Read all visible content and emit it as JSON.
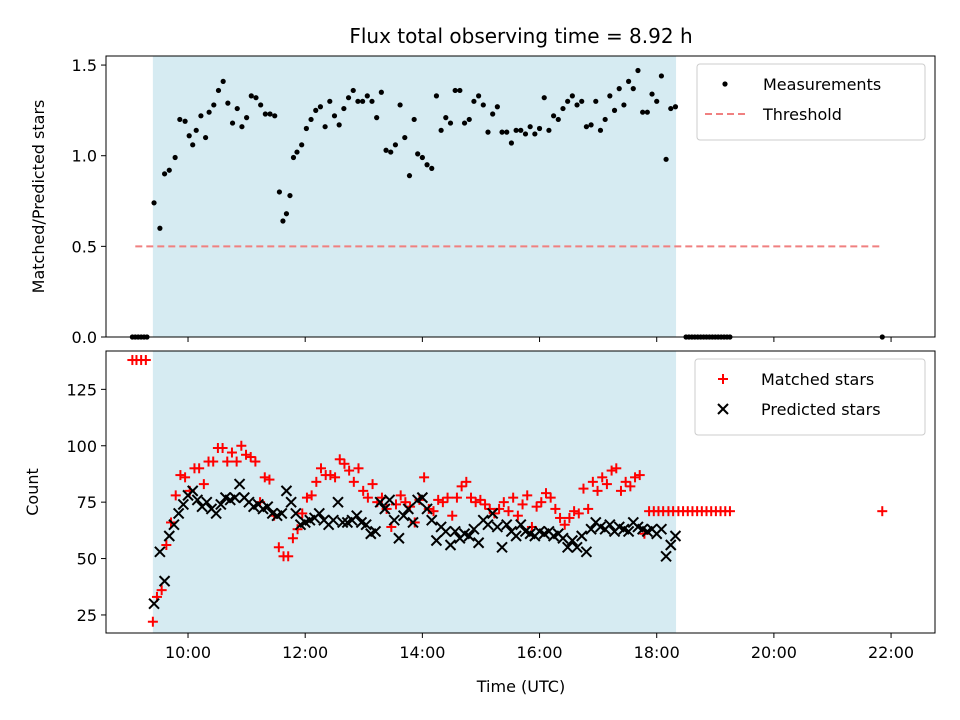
{
  "chart_data": {
    "title": "Flux total observing time = 8.92 h",
    "xlabel": "Time (UTC)",
    "x_unit": "hours UTC",
    "x_ticks": [
      10,
      12,
      14,
      16,
      18,
      20,
      22
    ],
    "x_tick_labels": [
      "10:00",
      "12:00",
      "14:00",
      "16:00",
      "18:00",
      "20:00",
      "22:00"
    ],
    "xlim": [
      8.6,
      22.75
    ],
    "observing_window": [
      9.4,
      18.33
    ],
    "shade_color": "#add8e6",
    "panels": [
      {
        "type": "scatter",
        "ylabel": "Matched/Predicted stars",
        "ylim": [
          0,
          1.55
        ],
        "y_ticks": [
          0.0,
          0.5,
          1.0,
          1.5
        ],
        "y_tick_labels": [
          "0.0",
          "0.5",
          "1.0",
          "1.5"
        ],
        "legend_position": "top-right",
        "threshold": {
          "name": "Threshold",
          "y": 0.5,
          "x_range": [
            9.1,
            21.85
          ],
          "color": "#f08080"
        },
        "series": [
          {
            "name": "Measurements",
            "marker": "dot",
            "color": "#000000",
            "x": [
              9.05,
              9.1,
              9.15,
              9.2,
              9.25,
              9.3,
              9.42,
              9.52,
              9.6,
              9.68,
              9.78,
              9.86,
              9.95,
              10.02,
              10.08,
              10.14,
              10.22,
              10.3,
              10.36,
              10.44,
              10.52,
              10.6,
              10.68,
              10.76,
              10.84,
              10.92,
              11.0,
              11.08,
              11.16,
              11.24,
              11.32,
              11.4,
              11.48,
              11.56,
              11.62,
              11.68,
              11.74,
              11.8,
              11.86,
              11.94,
              12.02,
              12.1,
              12.18,
              12.26,
              12.34,
              12.42,
              12.5,
              12.58,
              12.66,
              12.74,
              12.82,
              12.9,
              12.98,
              13.06,
              13.14,
              13.22,
              13.3,
              13.38,
              13.46,
              13.54,
              13.62,
              13.7,
              13.78,
              13.86,
              13.92,
              14.0,
              14.08,
              14.16,
              14.24,
              14.32,
              14.4,
              14.48,
              14.56,
              14.64,
              14.72,
              14.8,
              14.88,
              14.96,
              15.04,
              15.12,
              15.2,
              15.28,
              15.36,
              15.44,
              15.52,
              15.6,
              15.68,
              15.76,
              15.84,
              15.92,
              16.0,
              16.08,
              16.16,
              16.24,
              16.32,
              16.4,
              16.48,
              16.56,
              16.64,
              16.72,
              16.8,
              16.88,
              16.96,
              17.04,
              17.12,
              17.2,
              17.28,
              17.36,
              17.44,
              17.52,
              17.6,
              17.68,
              17.76,
              17.84,
              17.92,
              18.0,
              18.08,
              18.16,
              18.24,
              18.32,
              18.5,
              18.55,
              18.6,
              18.65,
              18.7,
              18.75,
              18.8,
              18.85,
              18.9,
              18.95,
              19.0,
              19.05,
              19.1,
              19.15,
              19.2,
              19.25,
              21.85
            ],
            "y": [
              0.0,
              0.0,
              0.0,
              0.0,
              0.0,
              0.0,
              0.74,
              0.6,
              0.9,
              0.92,
              0.99,
              1.2,
              1.19,
              1.11,
              1.06,
              1.14,
              1.22,
              1.1,
              1.24,
              1.28,
              1.36,
              1.41,
              1.29,
              1.18,
              1.26,
              1.16,
              1.21,
              1.33,
              1.32,
              1.28,
              1.23,
              1.23,
              1.22,
              0.8,
              0.64,
              0.68,
              0.78,
              0.99,
              1.02,
              1.06,
              1.15,
              1.2,
              1.25,
              1.27,
              1.16,
              1.3,
              1.22,
              1.17,
              1.26,
              1.32,
              1.36,
              1.3,
              1.3,
              1.33,
              1.3,
              1.21,
              1.35,
              1.03,
              1.02,
              1.06,
              1.28,
              1.1,
              0.89,
              1.2,
              1.01,
              0.99,
              0.95,
              0.93,
              1.33,
              1.14,
              1.21,
              1.18,
              1.36,
              1.36,
              1.18,
              1.2,
              1.3,
              1.33,
              1.28,
              1.13,
              1.23,
              1.27,
              1.13,
              1.13,
              1.07,
              1.14,
              1.14,
              1.12,
              1.16,
              1.12,
              1.15,
              1.32,
              1.14,
              1.22,
              1.2,
              1.26,
              1.3,
              1.33,
              1.28,
              1.3,
              1.16,
              1.17,
              1.3,
              1.14,
              1.2,
              1.33,
              1.25,
              1.37,
              1.28,
              1.41,
              1.37,
              1.47,
              1.24,
              1.24,
              1.34,
              1.3,
              1.44,
              0.98,
              1.26,
              1.27,
              0.0,
              0.0,
              0.0,
              0.0,
              0.0,
              0.0,
              0.0,
              0.0,
              0.0,
              0.0,
              0.0,
              0.0,
              0.0,
              0.0,
              0.0,
              0.0,
              0.0
            ]
          }
        ]
      },
      {
        "type": "scatter",
        "ylabel": "Count",
        "ylim": [
          17,
          142
        ],
        "y_ticks": [
          25,
          50,
          75,
          100,
          125
        ],
        "y_tick_labels": [
          "25",
          "50",
          "75",
          "100",
          "125"
        ],
        "legend_position": "top-right",
        "series": [
          {
            "name": "Matched stars",
            "marker": "plus",
            "color": "#ff0000",
            "x": [
              9.05,
              9.12,
              9.2,
              9.28,
              9.4,
              9.47,
              9.55,
              9.63,
              9.71,
              9.79,
              9.87,
              9.95,
              10.03,
              10.11,
              10.19,
              10.27,
              10.35,
              10.43,
              10.51,
              10.59,
              10.67,
              10.75,
              10.83,
              10.91,
              10.99,
              11.07,
              11.15,
              11.23,
              11.31,
              11.39,
              11.47,
              11.55,
              11.63,
              11.71,
              11.79,
              11.87,
              11.95,
              12.03,
              12.11,
              12.19,
              12.27,
              12.35,
              12.43,
              12.51,
              12.59,
              12.67,
              12.75,
              12.83,
              12.91,
              12.99,
              13.07,
              13.15,
              13.23,
              13.31,
              13.39,
              13.47,
              13.55,
              13.63,
              13.71,
              13.79,
              13.87,
              13.95,
              14.03,
              14.11,
              14.19,
              14.27,
              14.35,
              14.43,
              14.51,
              14.59,
              14.67,
              14.75,
              14.83,
              14.91,
              14.99,
              15.07,
              15.15,
              15.23,
              15.31,
              15.39,
              15.47,
              15.55,
              15.63,
              15.71,
              15.79,
              15.87,
              15.95,
              16.03,
              16.11,
              16.19,
              16.27,
              16.35,
              16.43,
              16.51,
              16.59,
              16.67,
              16.75,
              16.83,
              16.91,
              16.99,
              17.07,
              17.15,
              17.23,
              17.31,
              17.39,
              17.47,
              17.55,
              17.63,
              17.71,
              17.79,
              17.87,
              17.95,
              18.03,
              18.11,
              18.2,
              18.28,
              18.37,
              18.45,
              18.53,
              18.61,
              18.69,
              18.77,
              18.85,
              18.93,
              19.01,
              19.09,
              19.17,
              19.25,
              21.85
            ],
            "y": [
              138,
              138,
              138,
              138,
              22,
              33,
              36,
              56,
              66,
              78,
              87,
              86,
              80,
              90,
              90,
              83,
              93,
              93,
              99,
              99,
              93,
              97,
              93,
              100,
              96,
              95,
              93,
              75,
              86,
              85,
              69,
              55,
              51,
              51,
              59,
              63,
              70,
              77,
              78,
              84,
              90,
              87,
              87,
              86,
              94,
              92,
              89,
              84,
              90,
              80,
              77,
              83,
              75,
              77,
              72,
              64,
              74,
              78,
              75,
              73,
              66,
              76,
              86,
              72,
              71,
              76,
              75,
              77,
              69,
              77,
              82,
              84,
              77,
              75,
              76,
              74,
              72,
              70,
              72,
              75,
              71,
              77,
              69,
              74,
              78,
              64,
              73,
              75,
              79,
              77,
              72,
              68,
              65,
              68,
              71,
              70,
              81,
              72,
              84,
              80,
              86,
              83,
              89,
              90,
              80,
              84,
              82,
              86,
              87,
              61,
              71,
              71,
              71,
              71,
              71,
              71,
              71,
              71,
              71,
              71,
              71,
              71,
              71,
              71,
              71,
              71,
              71,
              71,
              71
            ],
            "x_fix": "lengths-aligned"
          },
          {
            "name": "Predicted stars",
            "marker": "cross",
            "color": "#000000",
            "x": [
              9.42,
              9.52,
              9.6,
              9.68,
              9.76,
              9.84,
              9.92,
              10.0,
              10.08,
              10.16,
              10.24,
              10.32,
              10.4,
              10.48,
              10.56,
              10.64,
              10.72,
              10.8,
              10.88,
              10.96,
              11.04,
              11.12,
              11.2,
              11.28,
              11.36,
              11.44,
              11.52,
              11.6,
              11.68,
              11.76,
              11.84,
              11.92,
              12.0,
              12.08,
              12.16,
              12.24,
              12.32,
              12.4,
              12.48,
              12.56,
              12.64,
              12.72,
              12.8,
              12.88,
              12.96,
              13.04,
              13.12,
              13.2,
              13.28,
              13.36,
              13.44,
              13.52,
              13.6,
              13.68,
              13.76,
              13.84,
              13.92,
              14.0,
              14.08,
              14.16,
              14.24,
              14.32,
              14.4,
              14.48,
              14.56,
              14.64,
              14.72,
              14.8,
              14.88,
              14.96,
              15.04,
              15.12,
              15.2,
              15.28,
              15.36,
              15.44,
              15.52,
              15.6,
              15.68,
              15.76,
              15.84,
              15.92,
              16.0,
              16.08,
              16.16,
              16.24,
              16.32,
              16.4,
              16.48,
              16.56,
              16.64,
              16.72,
              16.8,
              16.88,
              16.96,
              17.04,
              17.12,
              17.2,
              17.28,
              17.36,
              17.44,
              17.52,
              17.6,
              17.68,
              17.76,
              17.84,
              17.92,
              18.0,
              18.08,
              18.16,
              18.24,
              18.32
            ],
            "y": [
              30,
              53,
              40,
              60,
              65,
              70,
              74,
              78,
              80,
              76,
              73,
              75,
              72,
              70,
              74,
              77,
              76,
              77,
              83,
              77,
              75,
              73,
              74,
              72,
              73,
              70,
              69,
              70,
              80,
              75,
              70,
              65,
              66,
              67,
              68,
              70,
              67,
              65,
              67,
              75,
              66,
              66,
              67,
              69,
              66,
              65,
              61,
              62,
              75,
              72,
              76,
              67,
              59,
              69,
              72,
              66,
              76,
              77,
              72,
              67,
              58,
              64,
              62,
              56,
              62,
              59,
              61,
              60,
              63,
              57,
              67,
              65,
              70,
              64,
              55,
              65,
              62,
              60,
              65,
              62,
              61,
              60,
              62,
              61,
              62,
              60,
              61,
              59,
              55,
              58,
              55,
              60,
              53,
              63,
              66,
              64,
              63,
              65,
              62,
              64,
              63,
              62,
              66,
              64,
              63,
              62,
              63,
              61,
              63,
              51,
              56,
              60
            ],
            "x_fix": "lengths-aligned"
          }
        ]
      }
    ]
  }
}
